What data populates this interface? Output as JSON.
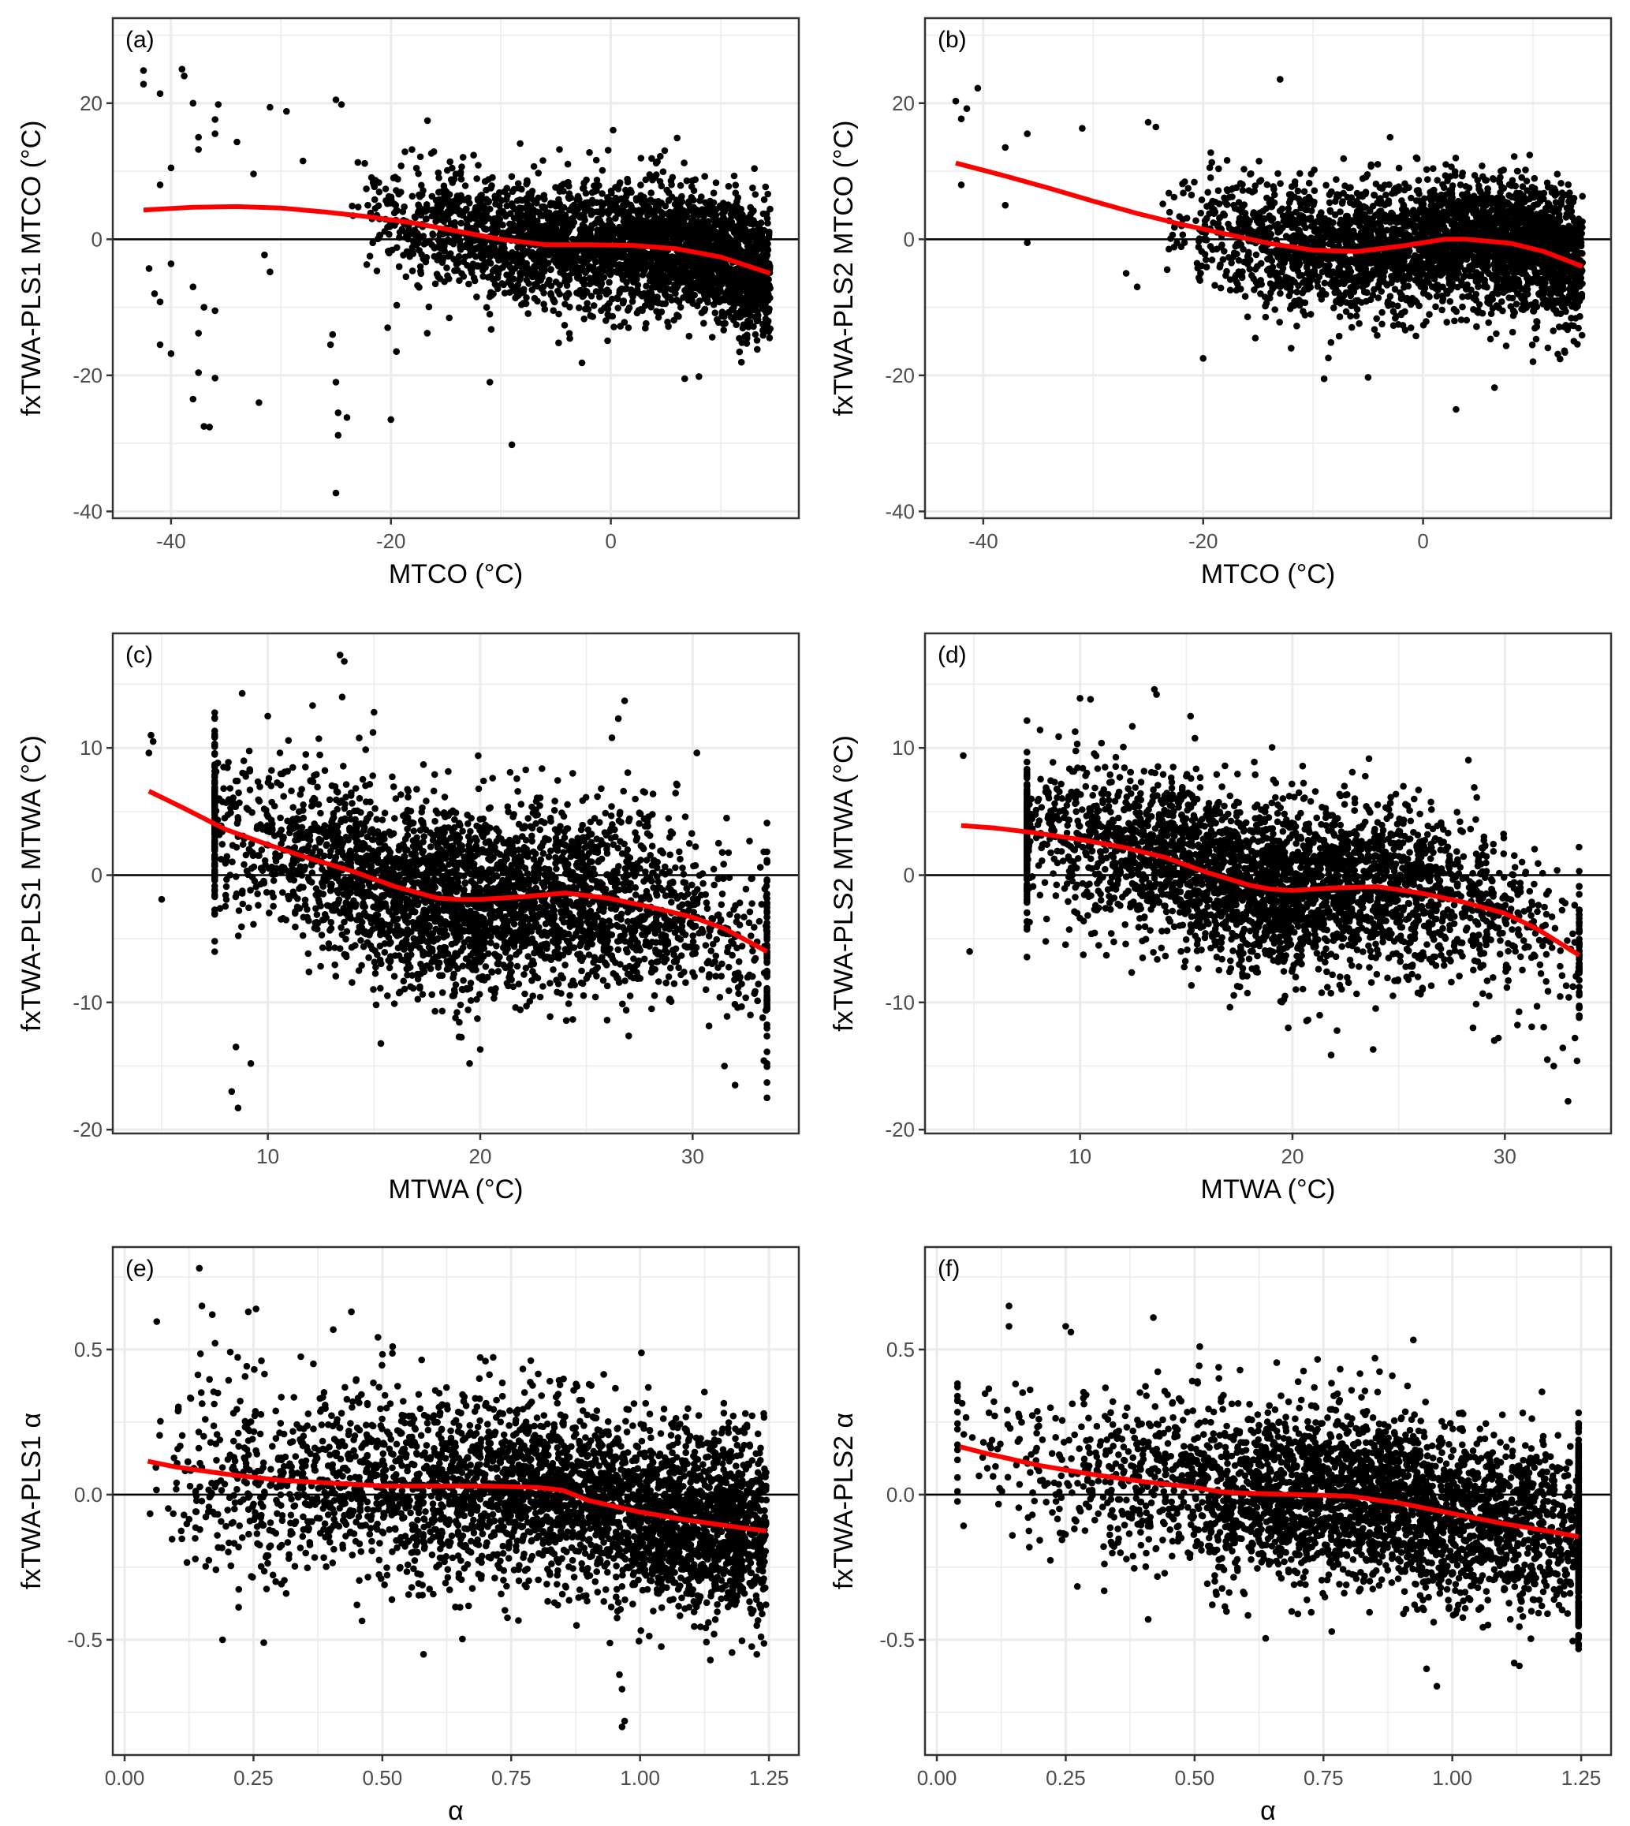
{
  "figure": {
    "colors": {
      "points": "#000000",
      "smooth": "#ff0000",
      "grid": "#ebebeb",
      "zero_line": "#000000",
      "border": "#333333",
      "tick_text": "#4d4d4d"
    }
  },
  "chart_data": [
    {
      "id": "a",
      "label": "(a)",
      "type": "scatter",
      "xlabel": "MTCO (°C)",
      "ylabel": "fxTWA-PLS1 MTCO (°C)",
      "xlim": [
        -45.3,
        17.1
      ],
      "ylim": [
        -41,
        32.5
      ],
      "xticks": [
        -40,
        -20,
        0
      ],
      "xtick_labels": [
        "-40",
        "-20",
        "0"
      ],
      "yticks": [
        -40,
        -20,
        0,
        20
      ],
      "ytick_labels": [
        "-40",
        "-20",
        "0",
        "20"
      ],
      "hline": 0,
      "grid": true,
      "smooth": {
        "x": [
          -42.5,
          -38,
          -34,
          -30,
          -26,
          -22,
          -18,
          -14,
          -10,
          -6,
          -2,
          2,
          6,
          10,
          14.5
        ],
        "y": [
          4.3,
          4.7,
          4.8,
          4.6,
          4.0,
          3.3,
          2.4,
          1.2,
          0.0,
          -0.8,
          -0.8,
          -0.9,
          -1.4,
          -2.6,
          -5.0
        ]
      },
      "cloud": {
        "n": 3200,
        "x_range": [
          -24,
          14.5
        ],
        "x_density": "increasing toward 0",
        "y_sd": 4.5
      },
      "outliers": [
        [
          -42.5,
          24.8
        ],
        [
          -42.5,
          22.8
        ],
        [
          -41,
          21.4
        ],
        [
          -39,
          25
        ],
        [
          -38.8,
          24
        ],
        [
          -38,
          20
        ],
        [
          -37.5,
          15
        ],
        [
          -37.5,
          13.2
        ],
        [
          -36,
          17.6
        ],
        [
          -35.7,
          19.8
        ],
        [
          -36,
          15.5
        ],
        [
          -34,
          14.3
        ],
        [
          -32.5,
          9.6
        ],
        [
          -31,
          19.4
        ],
        [
          -29.5,
          18.8
        ],
        [
          -28,
          11.5
        ],
        [
          -40,
          10.5
        ],
        [
          -41,
          8
        ],
        [
          -42,
          -4.3
        ],
        [
          -41.5,
          -8
        ],
        [
          -41,
          -9.2
        ],
        [
          -40,
          -3.6
        ],
        [
          -38,
          -7
        ],
        [
          -37.5,
          -13.8
        ],
        [
          -37,
          -10
        ],
        [
          -36,
          -10.5
        ],
        [
          -41,
          -15.5
        ],
        [
          -40,
          -16.8
        ],
        [
          -38,
          -23.5
        ],
        [
          -37.5,
          -19.6
        ],
        [
          -37,
          -27.5
        ],
        [
          -36.5,
          -27.6
        ],
        [
          -36,
          -20.4
        ],
        [
          -32,
          -24
        ],
        [
          -31,
          -4.8
        ],
        [
          -31.5,
          -2.3
        ],
        [
          -25,
          20.5
        ],
        [
          -24.5,
          19.8
        ],
        [
          -25,
          -21
        ],
        [
          -24.8,
          -25.5
        ],
        [
          -24.8,
          -28.8
        ],
        [
          -25,
          -37.3
        ],
        [
          -24,
          -26.2
        ],
        [
          -20,
          -26.5
        ],
        [
          -11,
          -21
        ],
        [
          -9,
          -30.2
        ],
        [
          -25.3,
          -14
        ],
        [
          -25.5,
          -15.5
        ],
        [
          -20.3,
          -13
        ],
        [
          -19.5,
          -16.5
        ],
        [
          -16.7,
          -13.8
        ]
      ]
    },
    {
      "id": "b",
      "label": "(b)",
      "type": "scatter",
      "xlabel": "MTCO (°C)",
      "ylabel": "fxTWA-PLS2 MTCO (°C)",
      "xlim": [
        -45.3,
        17.1
      ],
      "ylim": [
        -41,
        32.5
      ],
      "xticks": [
        -40,
        -20,
        0
      ],
      "xtick_labels": [
        "-40",
        "-20",
        "0"
      ],
      "yticks": [
        -40,
        -20,
        0,
        20
      ],
      "ytick_labels": [
        "-40",
        "-20",
        "0",
        "20"
      ],
      "hline": 0,
      "grid": true,
      "smooth": {
        "x": [
          -42.5,
          -38,
          -34,
          -30,
          -26,
          -22,
          -18,
          -14,
          -10,
          -6,
          -2,
          2,
          4,
          8,
          11,
          14.5
        ],
        "y": [
          11.2,
          9.3,
          7.5,
          5.6,
          3.8,
          2.2,
          0.8,
          -0.6,
          -1.6,
          -1.8,
          -1.0,
          0.0,
          0.0,
          -0.6,
          -1.8,
          -4.0
        ]
      },
      "cloud": {
        "n": 3200,
        "x_range": [
          -24,
          14.5
        ],
        "x_density": "increasing toward 0",
        "y_sd": 4.6
      },
      "outliers": [
        [
          -42.5,
          20.3
        ],
        [
          -42,
          17.7
        ],
        [
          -41.5,
          19.2
        ],
        [
          -40.5,
          22.2
        ],
        [
          -38,
          13.5
        ],
        [
          -36,
          15.5
        ],
        [
          -31,
          16.3
        ],
        [
          -25,
          17.2
        ],
        [
          -24.3,
          16.5
        ],
        [
          -13,
          23.5
        ],
        [
          -3,
          15
        ],
        [
          -42,
          8
        ],
        [
          -38,
          5
        ],
        [
          -36,
          -0.5
        ],
        [
          -27,
          -5
        ],
        [
          -26,
          -7
        ],
        [
          -20,
          -17.5
        ],
        [
          -12,
          -16
        ],
        [
          -9,
          -20.5
        ],
        [
          -5,
          -20.3
        ],
        [
          3,
          -25
        ],
        [
          6.5,
          -21.8
        ],
        [
          10,
          -18
        ]
      ]
    },
    {
      "id": "c",
      "label": "(c)",
      "type": "scatter",
      "xlabel": "MTWA (°C)",
      "ylabel": "fxTWA-PLS1 MTWA (°C)",
      "xlim": [
        2.7,
        35.0
      ],
      "ylim": [
        -20.3,
        19.0
      ],
      "xticks": [
        10,
        20,
        30
      ],
      "xtick_labels": [
        "10",
        "20",
        "30"
      ],
      "yticks": [
        -20,
        -10,
        0,
        10
      ],
      "ytick_labels": [
        "-20",
        "-10",
        "0",
        "10"
      ],
      "hline": 0,
      "grid": true,
      "smooth": {
        "x": [
          4.4,
          6,
          8,
          10,
          12,
          14,
          16,
          18,
          19,
          20,
          22,
          24,
          26,
          28,
          30,
          31.5,
          33.5
        ],
        "y": [
          6.6,
          5.3,
          3.6,
          2.4,
          1.3,
          0.3,
          -0.9,
          -1.8,
          -1.9,
          -1.9,
          -1.7,
          -1.4,
          -1.8,
          -2.5,
          -3.3,
          -4.2,
          -6.0
        ]
      },
      "cloud": {
        "n": 3400,
        "x_range": [
          7.5,
          33.5
        ],
        "x_density": "peak near 20",
        "y_sd": 3.6
      },
      "outliers": [
        [
          4.5,
          11
        ],
        [
          4.6,
          10.5
        ],
        [
          4.4,
          9.6
        ],
        [
          5,
          -1.9
        ],
        [
          13.4,
          17.3
        ],
        [
          13.6,
          16.8
        ],
        [
          13.5,
          14
        ],
        [
          15,
          12.8
        ],
        [
          10,
          12.5
        ],
        [
          26.8,
          13.7
        ],
        [
          26.5,
          12.3
        ],
        [
          26.2,
          10.8
        ],
        [
          30.2,
          9.6
        ],
        [
          8.5,
          -13.5
        ],
        [
          8.3,
          -17
        ],
        [
          8.6,
          -18.3
        ],
        [
          9.2,
          -14.8
        ],
        [
          19.5,
          -14.8
        ],
        [
          20,
          -13.7
        ],
        [
          31.5,
          -15
        ],
        [
          32,
          -16.5
        ],
        [
          33.5,
          -17.5
        ],
        [
          33.5,
          -14.8
        ],
        [
          33.3,
          -11.2
        ]
      ]
    },
    {
      "id": "d",
      "label": "(d)",
      "type": "scatter",
      "xlabel": "MTWA (°C)",
      "ylabel": "fxTWA-PLS2 MTWA (°C)",
      "xlim": [
        2.7,
        35.0
      ],
      "ylim": [
        -20.3,
        19.0
      ],
      "xticks": [
        10,
        20,
        30
      ],
      "xtick_labels": [
        "10",
        "20",
        "30"
      ],
      "yticks": [
        -20,
        -10,
        0,
        10
      ],
      "ytick_labels": [
        "-20",
        "-10",
        "0",
        "10"
      ],
      "hline": 0,
      "grid": true,
      "smooth": {
        "x": [
          4.4,
          6,
          8,
          10,
          12,
          14,
          16,
          18,
          19,
          20,
          22,
          24,
          26,
          28,
          30,
          31.5,
          33.5
        ],
        "y": [
          3.9,
          3.7,
          3.3,
          2.8,
          2.2,
          1.4,
          0.2,
          -0.8,
          -1.1,
          -1.2,
          -1.0,
          -0.9,
          -1.4,
          -2.1,
          -3.0,
          -4.2,
          -6.3
        ]
      },
      "cloud": {
        "n": 3400,
        "x_range": [
          7.5,
          33.5
        ],
        "x_density": "peak near 19",
        "y_sd": 3.3
      },
      "outliers": [
        [
          4.5,
          9.4
        ],
        [
          10,
          13.9
        ],
        [
          13.5,
          14.6
        ],
        [
          13.6,
          14.2
        ],
        [
          15.2,
          12.5
        ],
        [
          4.8,
          -6
        ],
        [
          19.8,
          -12
        ],
        [
          23.8,
          -13.7
        ],
        [
          28.5,
          -12
        ],
        [
          29.5,
          -13
        ],
        [
          32,
          -14.5
        ],
        [
          32.3,
          -15
        ],
        [
          33.4,
          -14.6
        ],
        [
          33.3,
          -12.8
        ]
      ]
    },
    {
      "id": "e",
      "label": "(e)",
      "type": "scatter",
      "xlabel": "α",
      "ylabel": "fxTWA-PLS1 α",
      "xlim": [
        -0.023,
        1.308
      ],
      "ylim": [
        -0.897,
        0.853
      ],
      "xticks": [
        0.0,
        0.25,
        0.5,
        0.75,
        1.0,
        1.25
      ],
      "xtick_labels": [
        "0.00",
        "0.25",
        "0.50",
        "0.75",
        "1.00",
        "1.25"
      ],
      "yticks": [
        -0.5,
        0.0,
        0.5
      ],
      "ytick_labels": [
        "-0.5",
        "0.0",
        "0.5"
      ],
      "hline": 0,
      "grid": true,
      "smooth": {
        "x": [
          0.045,
          0.1,
          0.2,
          0.3,
          0.4,
          0.5,
          0.6,
          0.7,
          0.8,
          0.85,
          0.9,
          1.0,
          1.1,
          1.2,
          1.245
        ],
        "y": [
          0.115,
          0.095,
          0.07,
          0.05,
          0.04,
          0.03,
          0.03,
          0.03,
          0.025,
          0.015,
          -0.02,
          -0.06,
          -0.09,
          -0.115,
          -0.125
        ]
      },
      "cloud": {
        "n": 3600,
        "x_range": [
          0.04,
          1.245
        ],
        "x_density": "increasing toward 1.25",
        "y_sd": 0.16
      },
      "outliers": [
        [
          0.145,
          0.78
        ],
        [
          0.15,
          0.65
        ],
        [
          0.17,
          0.62
        ],
        [
          0.24,
          0.63
        ],
        [
          0.255,
          0.64
        ],
        [
          0.44,
          0.63
        ],
        [
          0.52,
          0.51
        ],
        [
          0.7,
          0.46
        ],
        [
          0.19,
          -0.5
        ],
        [
          0.27,
          -0.51
        ],
        [
          0.58,
          -0.55
        ],
        [
          0.96,
          -0.62
        ],
        [
          0.965,
          -0.67
        ],
        [
          0.97,
          -0.78
        ],
        [
          0.965,
          -0.8
        ]
      ]
    },
    {
      "id": "f",
      "label": "(f)",
      "type": "scatter",
      "xlabel": "α",
      "ylabel": "fxTWA-PLS2 α",
      "xlim": [
        -0.023,
        1.308
      ],
      "ylim": [
        -0.897,
        0.853
      ],
      "xticks": [
        0.0,
        0.25,
        0.5,
        0.75,
        1.0,
        1.25
      ],
      "xtick_labels": [
        "0.00",
        "0.25",
        "0.50",
        "0.75",
        "1.00",
        "1.25"
      ],
      "yticks": [
        -0.5,
        0.0,
        0.5
      ],
      "ytick_labels": [
        "-0.5",
        "0.0",
        "0.5"
      ],
      "hline": 0,
      "grid": true,
      "smooth": {
        "x": [
          0.045,
          0.1,
          0.2,
          0.3,
          0.4,
          0.5,
          0.55,
          0.6,
          0.7,
          0.8,
          0.9,
          1.0,
          1.1,
          1.2,
          1.245
        ],
        "y": [
          0.165,
          0.14,
          0.1,
          0.07,
          0.045,
          0.025,
          0.01,
          0.005,
          0.0,
          -0.005,
          -0.03,
          -0.065,
          -0.1,
          -0.13,
          -0.145
        ]
      },
      "cloud": {
        "n": 3600,
        "x_range": [
          0.04,
          1.245
        ],
        "x_density": "peak near 0.85",
        "y_sd": 0.15
      },
      "outliers": [
        [
          0.14,
          0.65
        ],
        [
          0.14,
          0.58
        ],
        [
          0.25,
          0.58
        ],
        [
          0.26,
          0.56
        ],
        [
          0.42,
          0.61
        ],
        [
          0.51,
          0.51
        ],
        [
          0.85,
          0.47
        ],
        [
          0.41,
          -0.43
        ],
        [
          0.95,
          -0.6
        ],
        [
          0.97,
          -0.66
        ],
        [
          1.12,
          -0.58
        ],
        [
          1.13,
          -0.59
        ]
      ]
    }
  ]
}
